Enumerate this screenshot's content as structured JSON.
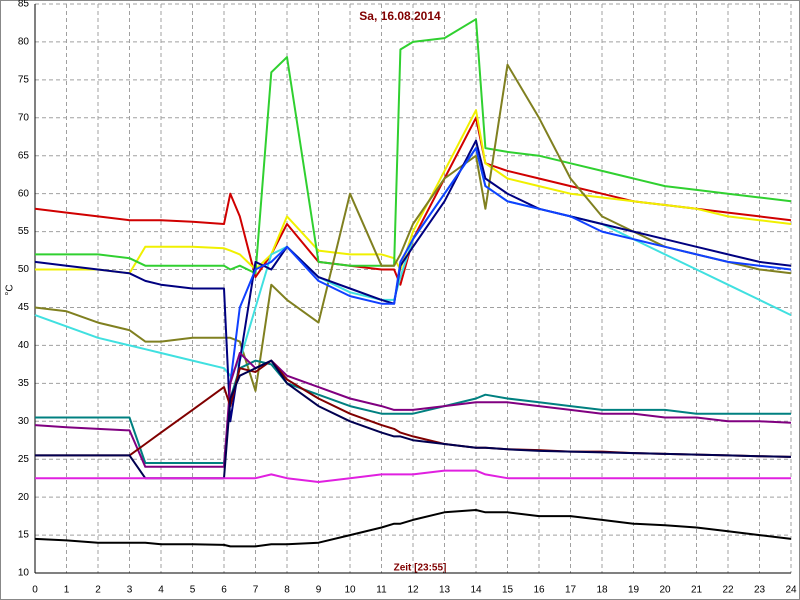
{
  "chart_data": {
    "type": "line",
    "title": "Sa, 16.08.2014",
    "x_label": "Zeit [23:55]",
    "y_label": "°C",
    "x": [
      0,
      1,
      2,
      3,
      3.5,
      4,
      5,
      6,
      6.2,
      6.5,
      7,
      7.5,
      8,
      9,
      10,
      11,
      11.4,
      11.6,
      12,
      13,
      14,
      14.3,
      15,
      16,
      17,
      18,
      19,
      20,
      21,
      22,
      23,
      24
    ],
    "xlim": [
      0,
      24
    ],
    "xticks": [
      0,
      1,
      2,
      3,
      4,
      5,
      6,
      7,
      8,
      9,
      10,
      11,
      12,
      13,
      14,
      15,
      16,
      17,
      18,
      19,
      20,
      21,
      22,
      23,
      24
    ],
    "ylim": [
      10,
      85
    ],
    "yticks": [
      10,
      15,
      20,
      25,
      30,
      35,
      40,
      45,
      50,
      55,
      60,
      65,
      70,
      75,
      80,
      85
    ],
    "grid": true,
    "series": [
      {
        "color": "#d00000",
        "values": [
          58,
          57.5,
          57,
          56.5,
          56.5,
          56.5,
          56.3,
          56,
          60,
          57,
          49,
          52,
          56,
          51,
          50.5,
          50,
          50,
          48,
          54,
          62,
          70,
          64,
          63,
          62,
          61,
          60,
          59,
          58.5,
          58,
          57.5,
          57,
          56.5
        ]
      },
      {
        "color": "#f0f000",
        "values": [
          50,
          50,
          50,
          49.5,
          53,
          53,
          53,
          52.8,
          52.5,
          52,
          50,
          52,
          57,
          52.5,
          52,
          52,
          51.5,
          50,
          55,
          63,
          71,
          64,
          62,
          61,
          60,
          59.5,
          59,
          58.5,
          58,
          57,
          56.5,
          56
        ]
      },
      {
        "color": "#30d030",
        "values": [
          52,
          52,
          52,
          51.5,
          50.5,
          50.5,
          50.5,
          50.5,
          50,
          50.5,
          49.5,
          76,
          78,
          51,
          50.5,
          50.5,
          50.5,
          79,
          80,
          80.5,
          83,
          66,
          65.5,
          65,
          64,
          63,
          62,
          61,
          60.5,
          60,
          59.5,
          59
        ]
      },
      {
        "color": "#808020",
        "values": [
          45,
          44.5,
          43,
          42,
          40.5,
          40.5,
          41,
          41,
          41,
          40.5,
          34,
          48,
          46,
          43,
          60,
          50.5,
          50.5,
          52,
          56,
          62,
          65,
          58,
          77,
          70,
          62,
          57,
          55,
          53,
          52,
          51,
          50,
          49.5
        ]
      },
      {
        "color": "#40e0e0",
        "values": [
          44,
          42.5,
          41,
          40,
          39.5,
          39,
          38,
          37,
          36,
          38,
          45,
          52,
          53,
          49,
          47,
          46,
          46,
          49,
          54,
          60,
          66,
          61,
          59,
          58,
          57,
          56,
          54,
          52,
          50,
          48,
          46,
          44
        ]
      },
      {
        "color": "#000080",
        "values": [
          51,
          50.5,
          50,
          49.5,
          48.5,
          48,
          47.5,
          47.5,
          30,
          38,
          51,
          50,
          53,
          49,
          47.5,
          46,
          45.5,
          50.5,
          53,
          59,
          67,
          62,
          60,
          58,
          57,
          56,
          55,
          54,
          53,
          52,
          51,
          50.5
        ]
      },
      {
        "color": "#1040ff",
        "values": [
          null,
          null,
          null,
          null,
          null,
          null,
          null,
          null,
          35,
          45,
          50,
          51,
          53,
          48.5,
          46.5,
          45.5,
          45.5,
          51,
          54,
          60,
          66,
          61,
          59,
          58,
          57,
          55,
          54,
          53,
          52,
          51,
          50.5,
          50
        ]
      },
      {
        "color": "#008080",
        "values": [
          30.5,
          30.5,
          30.5,
          30.5,
          24.5,
          24.5,
          24.5,
          24.5,
          33,
          37,
          38,
          37.5,
          35,
          33.5,
          32,
          31,
          31,
          31,
          31,
          32,
          33,
          33.5,
          33,
          32.5,
          32,
          31.5,
          31.5,
          31.5,
          31,
          31,
          31,
          31
        ]
      },
      {
        "color": "#800080",
        "values": [
          29.5,
          29.2,
          29,
          28.8,
          24,
          24,
          24,
          24,
          35,
          39,
          37,
          38,
          36,
          34.5,
          33,
          32,
          31.5,
          31.5,
          31.5,
          32,
          32.5,
          32.5,
          32.5,
          32,
          31.5,
          31,
          31,
          30.5,
          30.5,
          30,
          30,
          29.8
        ]
      },
      {
        "color": "#800000",
        "values": [
          25.5,
          25.5,
          25.5,
          25.5,
          27,
          28.5,
          31.5,
          34.5,
          32,
          37,
          36.5,
          38,
          35.5,
          33,
          31,
          29.5,
          29,
          28.5,
          28,
          27,
          26.5,
          26.5,
          26.3,
          26.2,
          26,
          26,
          25.8,
          25.7,
          25.6,
          25.5,
          25.4,
          25.3
        ]
      },
      {
        "color": "#000050",
        "values": [
          25.5,
          25.5,
          25.5,
          25.5,
          22.5,
          22.5,
          22.5,
          22.5,
          33,
          36,
          37,
          38,
          35,
          32,
          30,
          28.5,
          28,
          28,
          27.5,
          27,
          26.5,
          26.5,
          26.3,
          26.1,
          26,
          25.9,
          25.8,
          25.7,
          25.6,
          25.5,
          25.4,
          25.3
        ]
      },
      {
        "color": "#e020e0",
        "values": [
          22.5,
          22.5,
          22.5,
          22.5,
          22.5,
          22.5,
          22.5,
          22.5,
          22.5,
          22.5,
          22.5,
          23,
          22.5,
          22,
          22.5,
          23,
          23,
          23,
          23,
          23.5,
          23.5,
          23,
          22.5,
          22.5,
          22.5,
          22.5,
          22.5,
          22.5,
          22.5,
          22.5,
          22.5,
          22.5
        ]
      },
      {
        "color": "#000000",
        "values": [
          14.5,
          14.3,
          14,
          14,
          14,
          13.8,
          13.8,
          13.7,
          13.5,
          13.5,
          13.5,
          13.8,
          13.8,
          14,
          15,
          16,
          16.5,
          16.5,
          17,
          18,
          18.3,
          18,
          18,
          17.5,
          17.5,
          17,
          16.5,
          16.3,
          16,
          15.5,
          15,
          14.5
        ]
      }
    ]
  }
}
